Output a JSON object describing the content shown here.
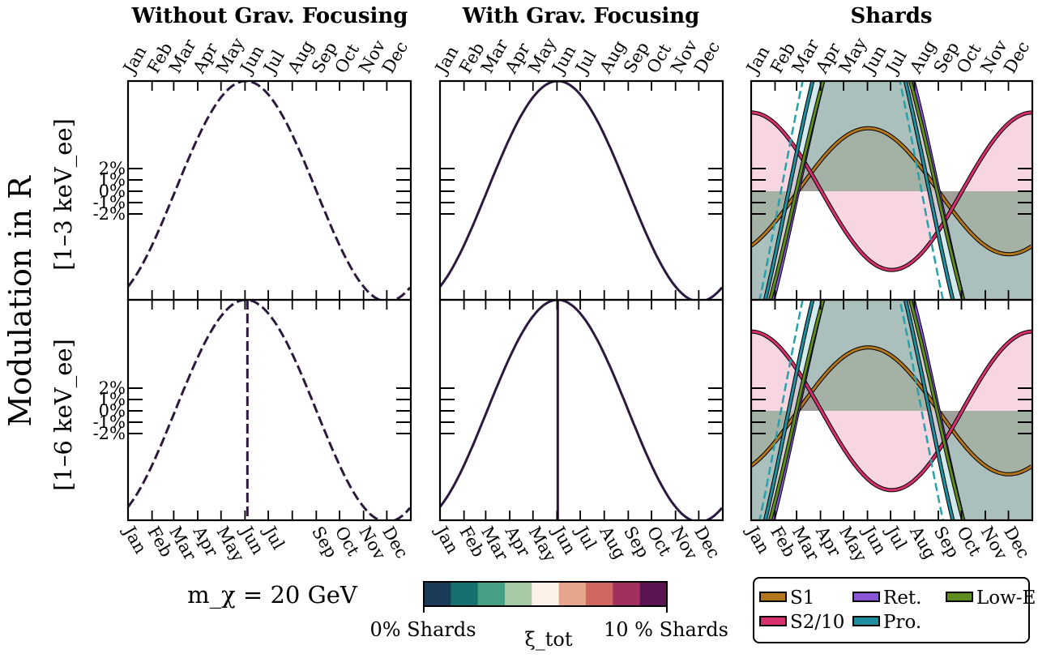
{
  "chart_data": {
    "type": "line",
    "titles": [
      "Without Grav. Focusing",
      "With Grav. Focusing",
      "Shards"
    ],
    "ylabel": "Modulation in R",
    "row_labels": [
      "[1–3 keV_ee]",
      "[1–6 keV_ee]"
    ],
    "months": [
      "Jan",
      "Feb",
      "Mar",
      "Apr",
      "May",
      "Jun",
      "Jul",
      "Aug",
      "Sep",
      "Oct",
      "Nov",
      "Dec"
    ],
    "bottom_months": [
      "Jan",
      "Feb",
      "Mar",
      "Apr",
      "May",
      "Jun",
      "Jul",
      "Aug",
      "Sep",
      "Oct",
      "Nov",
      "Dec"
    ],
    "bottom_months_col0": [
      "Jan",
      "Feb",
      "Mar",
      "Apr",
      "May",
      "Jun",
      "Jul",
      "Aug",
      "Sep",
      "Oct",
      "Nov",
      "Dec"
    ],
    "bottom_months_col0_display": [
      "Jan",
      "Feb",
      "Mar",
      "Apr",
      "May",
      "Jun",
      "Jul",
      "Sep",
      "Oct",
      "Nov",
      "Dec"
    ],
    "yticks": [
      "2%",
      "1%",
      "0%",
      "-1%",
      "-2%"
    ],
    "ytick_values": [
      2,
      1,
      0,
      -1,
      -2
    ],
    "ylim": [
      -6,
      6
    ],
    "xlim_days": [
      0,
      365
    ],
    "mass_label": "m_χ = 20 GeV",
    "smooth_series": {
      "peak_day": 152,
      "amplitude_pct": 5.6,
      "colormap_endpoints": [
        "0% Shards",
        "10 % Shards"
      ],
      "colorbar_label": "ξ_tot",
      "colorbar_colors": [
        "#1b3a57",
        "#17706e",
        "#46a085",
        "#a8c9a6",
        "#fdf1ea",
        "#e6a68c",
        "#d0665f",
        "#a12f5f",
        "#5b1452"
      ],
      "line_colors": [
        "#2b1a3d",
        "#5b1452"
      ]
    },
    "shards": [
      {
        "name": "S1",
        "color": "#b3761b",
        "peak_day": 152,
        "amplitude_pct": 3.2
      },
      {
        "name": "S2/10",
        "color": "#d6306e",
        "peak_day": 0,
        "amplitude_pct": 4.0
      },
      {
        "name": "Ret.",
        "color": "#8a55d6",
        "peak_day": 152,
        "amplitude_pct": 10.5
      },
      {
        "name": "Pro.",
        "color": "#1f8fa0",
        "peak_day": 140,
        "amplitude_pct": 11.0
      },
      {
        "name": "Low-E",
        "color": "#5e8c1e",
        "peak_day": 150,
        "amplitude_pct": 10.0
      }
    ]
  }
}
